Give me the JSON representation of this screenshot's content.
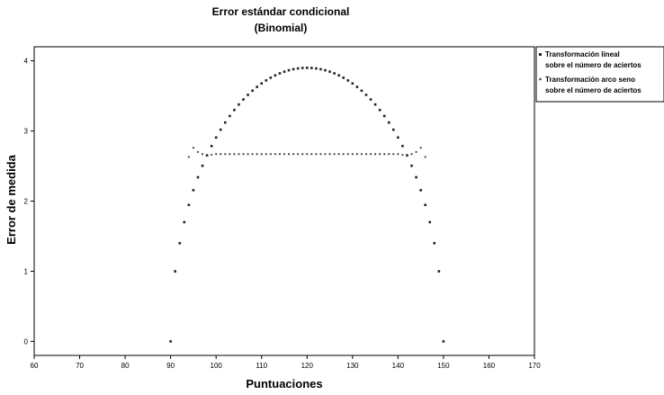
{
  "chart_data": {
    "type": "scatter",
    "title": "Error estándar condicional",
    "subtitle": "(Binomial)",
    "xlabel": "Puntuaciones",
    "ylabel": "Error de medida",
    "xlim": [
      60,
      170
    ],
    "ylim": [
      -0.2,
      4.2
    ],
    "xticks": [
      "60",
      "70",
      "80",
      "90",
      "100",
      "110",
      "120",
      "130",
      "140",
      "150",
      "160",
      "170"
    ],
    "yticks": [
      "0",
      "1",
      "2",
      "3",
      "4"
    ],
    "grid": false,
    "legend_position": "right-top",
    "series": [
      {
        "name_lines": [
          "Transformación lineal",
          "sobre el número de aciertos"
        ],
        "marker": "filled-square",
        "color": "#222222",
        "model": "binomial-se-linear",
        "x_range": [
          90,
          150
        ],
        "step": 1,
        "peak_y": 3.9
      },
      {
        "name_lines": [
          "Transformación arco seno",
          "sobre el número de aciertos"
        ],
        "marker": "small-dot",
        "color": "#444444",
        "points": [
          [
            94,
            2.63
          ],
          [
            95,
            2.76
          ],
          [
            96,
            2.7
          ],
          [
            97,
            2.67
          ],
          [
            98,
            2.66
          ],
          [
            99,
            2.66
          ],
          [
            100,
            2.67
          ],
          [
            101,
            2.67
          ],
          [
            102,
            2.67
          ],
          [
            103,
            2.67
          ],
          [
            104,
            2.67
          ],
          [
            105,
            2.67
          ],
          [
            106,
            2.67
          ],
          [
            107,
            2.67
          ],
          [
            108,
            2.67
          ],
          [
            109,
            2.67
          ],
          [
            110,
            2.67
          ],
          [
            111,
            2.67
          ],
          [
            112,
            2.67
          ],
          [
            113,
            2.67
          ],
          [
            114,
            2.67
          ],
          [
            115,
            2.67
          ],
          [
            116,
            2.67
          ],
          [
            117,
            2.67
          ],
          [
            118,
            2.67
          ],
          [
            119,
            2.67
          ],
          [
            120,
            2.67
          ],
          [
            121,
            2.67
          ],
          [
            122,
            2.67
          ],
          [
            123,
            2.67
          ],
          [
            124,
            2.67
          ],
          [
            125,
            2.67
          ],
          [
            126,
            2.67
          ],
          [
            127,
            2.67
          ],
          [
            128,
            2.67
          ],
          [
            129,
            2.67
          ],
          [
            130,
            2.67
          ],
          [
            131,
            2.67
          ],
          [
            132,
            2.67
          ],
          [
            133,
            2.67
          ],
          [
            134,
            2.67
          ],
          [
            135,
            2.67
          ],
          [
            136,
            2.67
          ],
          [
            137,
            2.67
          ],
          [
            138,
            2.67
          ],
          [
            139,
            2.67
          ],
          [
            140,
            2.67
          ],
          [
            141,
            2.66
          ],
          [
            142,
            2.66
          ],
          [
            143,
            2.67
          ],
          [
            144,
            2.7
          ],
          [
            145,
            2.76
          ],
          [
            146,
            2.63
          ]
        ]
      }
    ]
  }
}
